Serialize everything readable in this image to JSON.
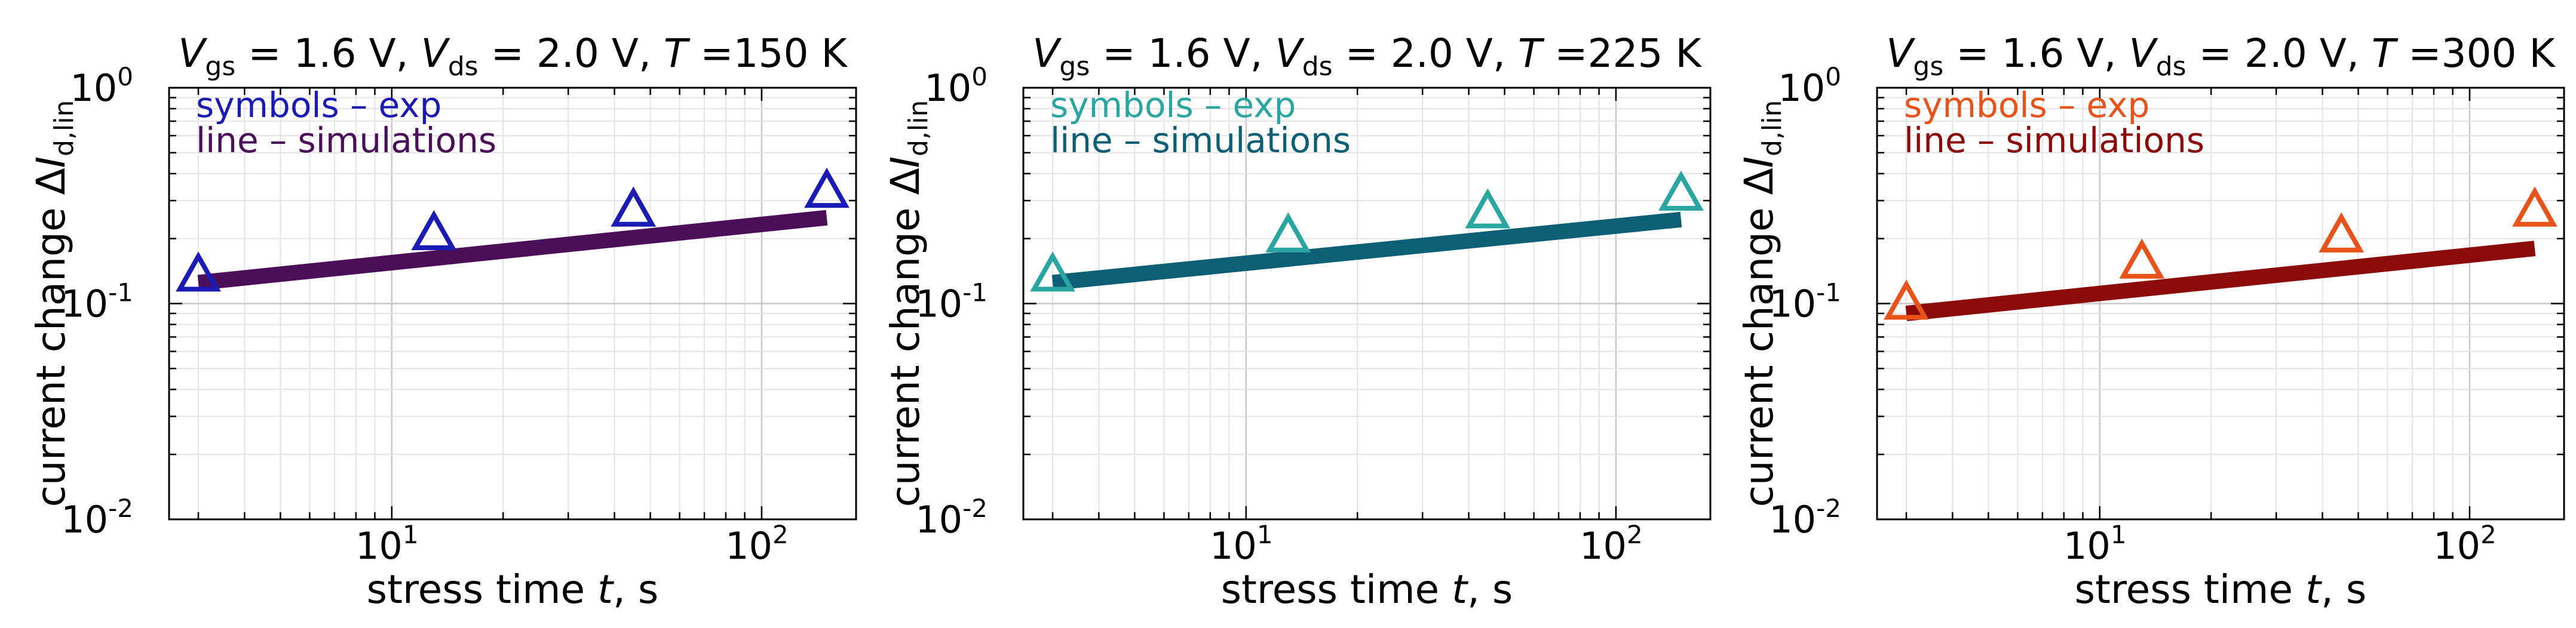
{
  "chart_data": [
    {
      "type": "scatter",
      "title": "Vgs = 1.6 V, Vds = 2.0 V, T = 150 K",
      "title_parts": {
        "vgs": "1.6",
        "vds": "2.0",
        "temp": "150"
      },
      "xlabel": "stress time t, s",
      "ylabel": "current change ΔId,lin",
      "xscale": "log",
      "yscale": "log",
      "xlim": [
        2.5,
        180
      ],
      "ylim": [
        0.01,
        1
      ],
      "grid": true,
      "legend_position": "top-left",
      "legend": {
        "exp_label": "symbols – exp",
        "sim_label": "line – simulations"
      },
      "x_ticks": [
        "10^1",
        "10^2"
      ],
      "y_ticks": [
        "10^-2",
        "10^-1",
        "10^0"
      ],
      "series": [
        {
          "name": "exp",
          "kind": "markers",
          "marker": "triangle",
          "color": "#1a1ab4",
          "x": [
            3,
            13,
            45,
            150
          ],
          "y": [
            0.135,
            0.21,
            0.27,
            0.33
          ]
        },
        {
          "name": "simulations",
          "kind": "line",
          "color": "#4a0f58",
          "x": [
            3,
            150
          ],
          "y": [
            0.125,
            0.25
          ]
        }
      ]
    },
    {
      "type": "scatter",
      "title": "Vgs = 1.6 V, Vds = 2.0 V, T = 225 K",
      "title_parts": {
        "vgs": "1.6",
        "vds": "2.0",
        "temp": "225"
      },
      "xlabel": "stress time t, s",
      "ylabel": "current change ΔId,lin",
      "xscale": "log",
      "yscale": "log",
      "xlim": [
        2.5,
        180
      ],
      "ylim": [
        0.01,
        1
      ],
      "grid": true,
      "legend_position": "top-left",
      "legend": {
        "exp_label": "symbols – exp",
        "sim_label": "line – simulations"
      },
      "x_ticks": [
        "10^1",
        "10^2"
      ],
      "y_ticks": [
        "10^-2",
        "10^-1",
        "10^0"
      ],
      "series": [
        {
          "name": "exp",
          "kind": "markers",
          "marker": "triangle",
          "color": "#2aa6a2",
          "x": [
            3,
            13,
            45,
            150
          ],
          "y": [
            0.135,
            0.205,
            0.265,
            0.32
          ]
        },
        {
          "name": "simulations",
          "kind": "line",
          "color": "#0c5f74",
          "x": [
            3,
            150
          ],
          "y": [
            0.125,
            0.245
          ]
        }
      ]
    },
    {
      "type": "scatter",
      "title": "Vgs = 1.6 V, Vds = 2.0 V, T = 300 K",
      "title_parts": {
        "vgs": "1.6",
        "vds": "2.0",
        "temp": "300"
      },
      "xlabel": "stress time t, s",
      "ylabel": "current change ΔId,lin",
      "xscale": "log",
      "yscale": "log",
      "xlim": [
        2.5,
        180
      ],
      "ylim": [
        0.01,
        1
      ],
      "grid": true,
      "legend_position": "top-left",
      "legend": {
        "exp_label": "symbols – exp",
        "sim_label": "line – simulations"
      },
      "x_ticks": [
        "10^1",
        "10^2"
      ],
      "y_ticks": [
        "10^-2",
        "10^-1",
        "10^0"
      ],
      "series": [
        {
          "name": "exp",
          "kind": "markers",
          "marker": "triangle",
          "color": "#e8531a",
          "x": [
            3,
            13,
            45,
            150
          ],
          "y": [
            0.1,
            0.155,
            0.205,
            0.27
          ]
        },
        {
          "name": "simulations",
          "kind": "line",
          "color": "#8b0a0a",
          "x": [
            3,
            150
          ],
          "y": [
            0.09,
            0.18
          ]
        }
      ]
    }
  ]
}
